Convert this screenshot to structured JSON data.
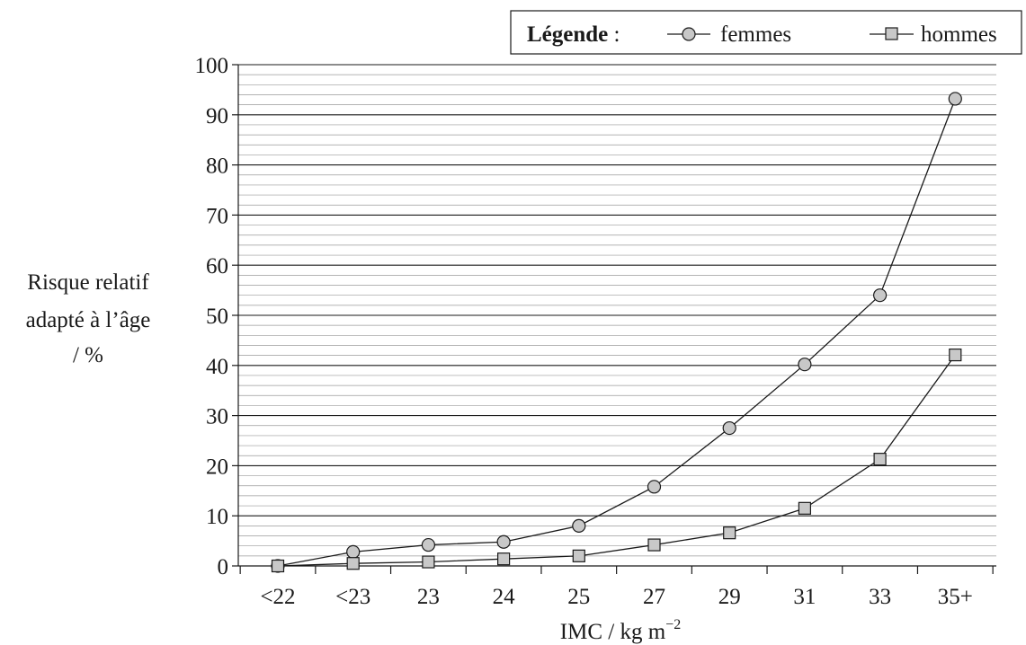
{
  "chart_data": {
    "type": "line",
    "categories": [
      "<22",
      "<23",
      "23",
      "24",
      "25",
      "27",
      "29",
      "31",
      "33",
      "35+"
    ],
    "series": [
      {
        "name": "femmes",
        "marker": "circle",
        "values": [
          0,
          2.8,
          4.2,
          4.8,
          8.0,
          15.8,
          27.5,
          40.2,
          54.0,
          93.2
        ]
      },
      {
        "name": "hommes",
        "marker": "square",
        "values": [
          0,
          0.5,
          0.8,
          1.4,
          2.0,
          4.2,
          6.6,
          11.5,
          21.3,
          42.1
        ]
      }
    ],
    "ylim": [
      0,
      100
    ],
    "y_ticks": [
      "0",
      "10",
      "20",
      "30",
      "40",
      "50",
      "60",
      "70",
      "80",
      "90",
      "100"
    ],
    "ylabel_lines": [
      "Risque relatif",
      "adapté à l’âge",
      "/ %"
    ],
    "xlabel_main": "IMC / kg m",
    "xlabel_sup": "−2",
    "legend": {
      "title": "Légende",
      "separator": " :",
      "position": "top-right"
    },
    "grid": {
      "major": true,
      "minor": true
    },
    "colors": {
      "marker_fill": "#c8c8c8",
      "line": "#1a1a1a",
      "major_grid": "#1a1a1a",
      "minor_grid": "#9a9a9a"
    }
  }
}
